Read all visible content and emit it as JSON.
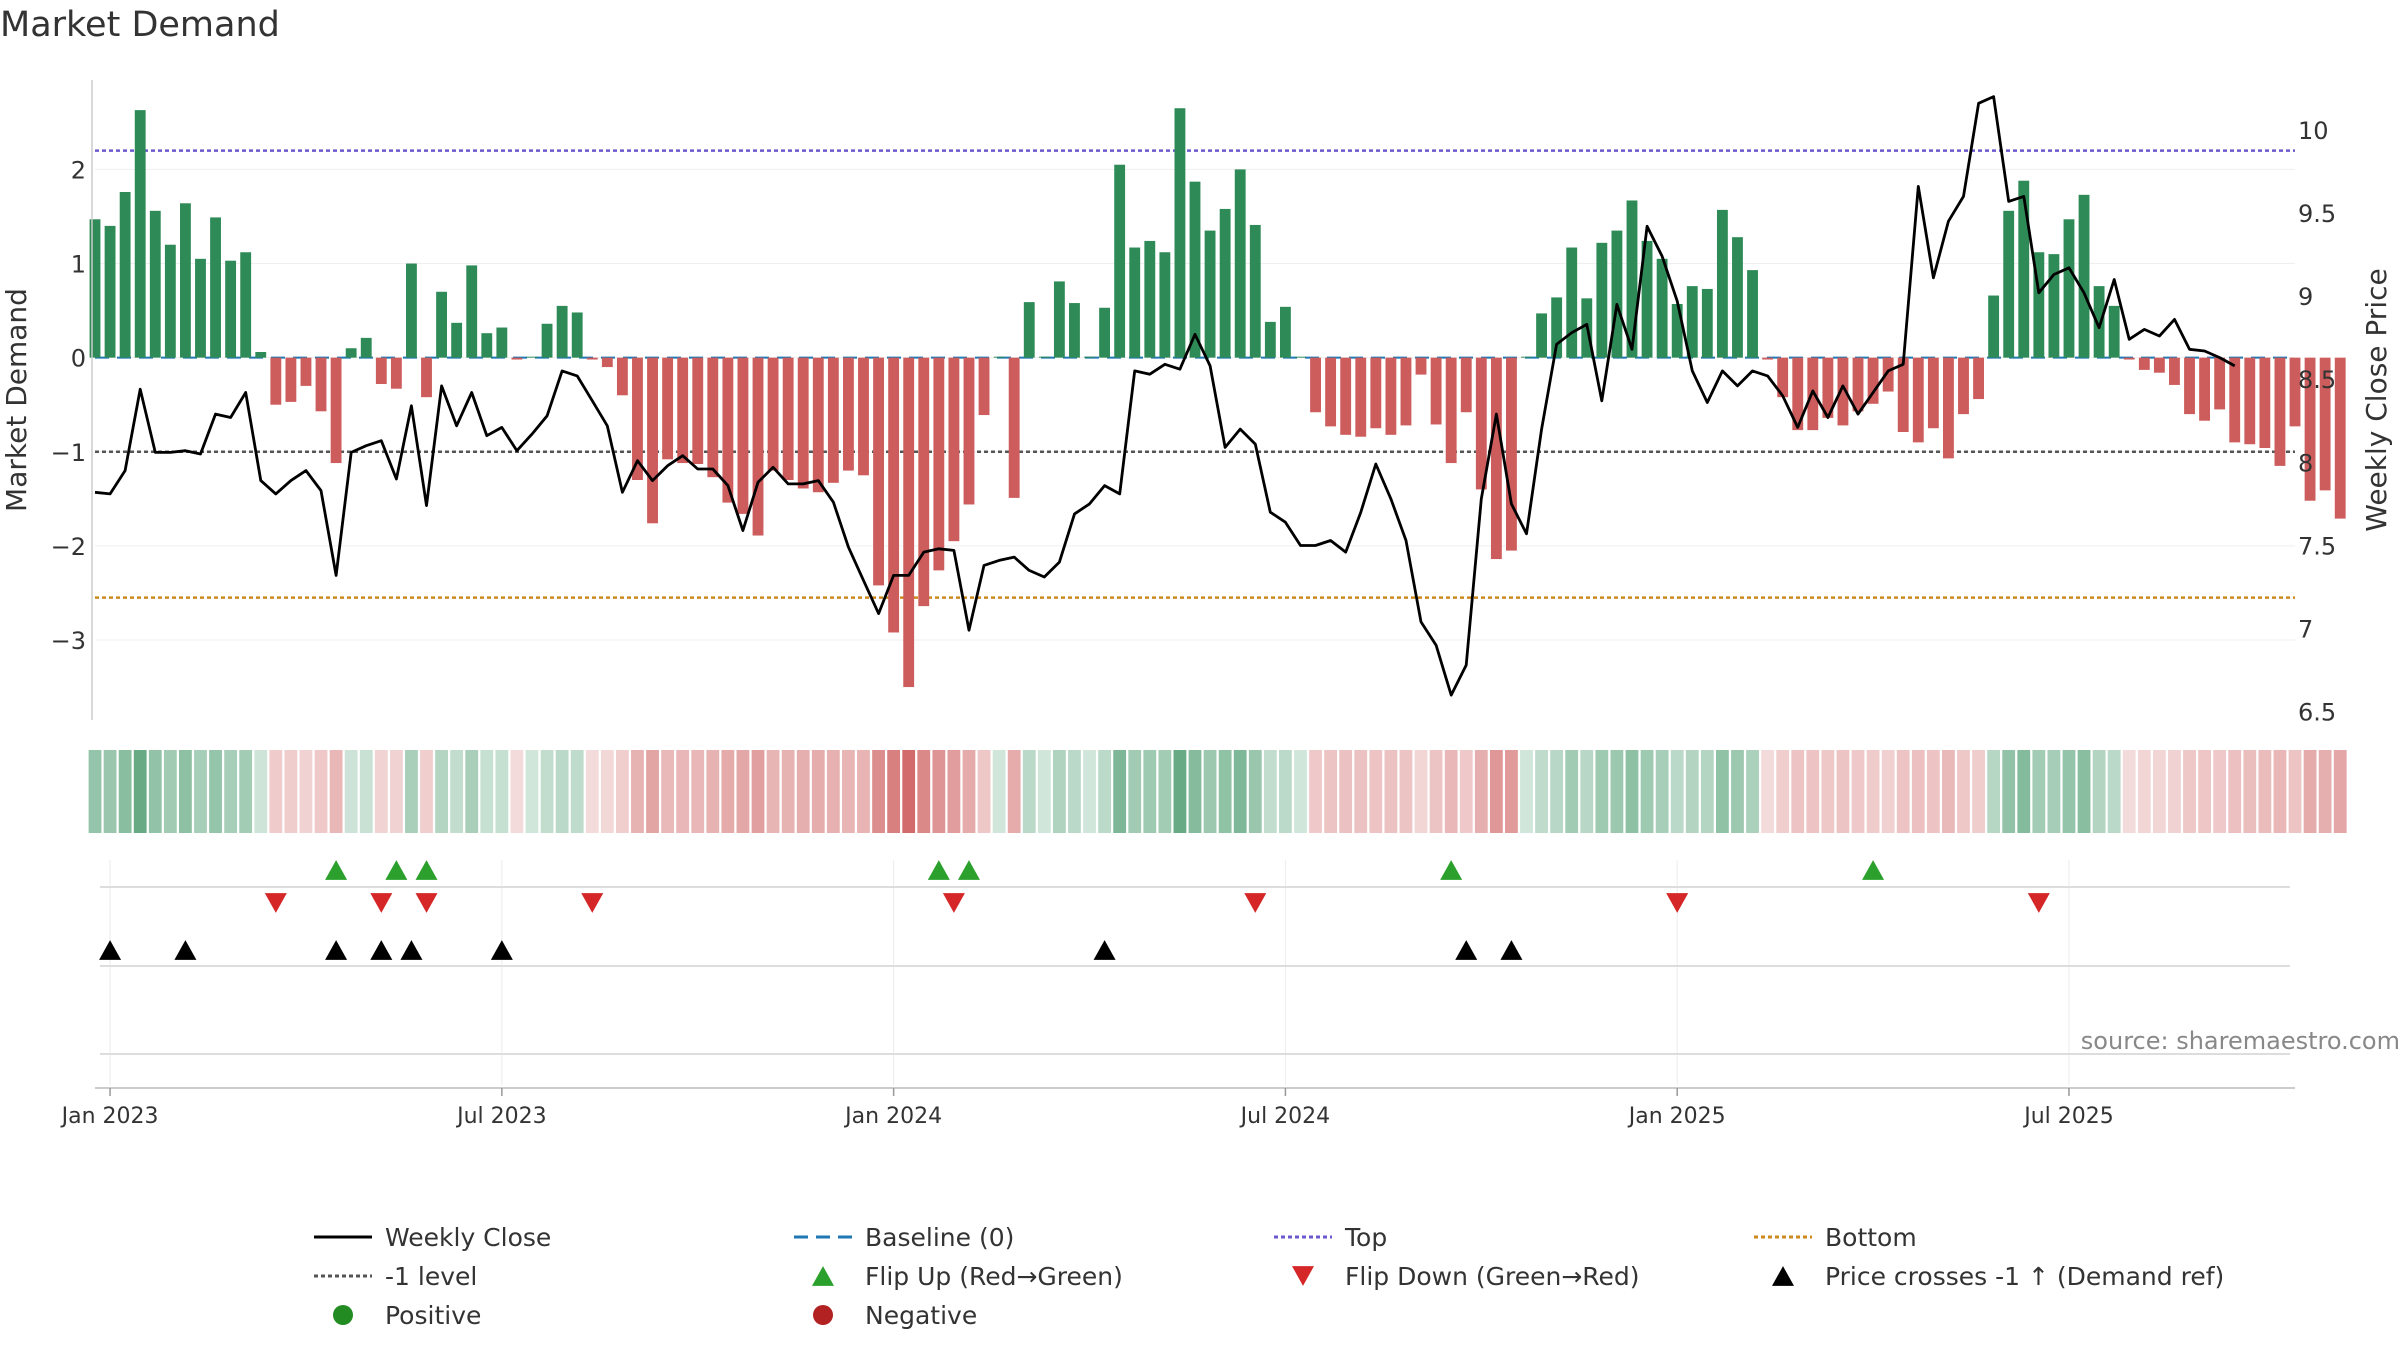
{
  "chart_data": {
    "type": "bar",
    "title": "Market Demand",
    "source": "source: sharemaestro.com",
    "ylabel_left": "Market Demand",
    "ylabel_right": "Weekly Close Price",
    "ylim_left": [
      -3.85,
      2.95
    ],
    "ylim_right": [
      6.45,
      10.3
    ],
    "left_ticks": [
      {
        "v": 2,
        "label": "2"
      },
      {
        "v": 1,
        "label": "1"
      },
      {
        "v": 0,
        "label": "0"
      },
      {
        "v": -1,
        "label": "−1"
      },
      {
        "v": -2,
        "label": "−2"
      },
      {
        "v": -3,
        "label": "−3"
      }
    ],
    "right_ticks": [
      {
        "v": 10,
        "label": "10"
      },
      {
        "v": 9.5,
        "label": "9.5"
      },
      {
        "v": 9,
        "label": "9"
      },
      {
        "v": 8.5,
        "label": "8.5"
      },
      {
        "v": 8,
        "label": "8"
      },
      {
        "v": 7.5,
        "label": "7.5"
      },
      {
        "v": 7,
        "label": "7"
      },
      {
        "v": 6.5,
        "label": "6.5"
      }
    ],
    "x_start": "2022-12-26",
    "x_week_range": [
      0,
      146
    ],
    "x_ticks": [
      {
        "label": "Jan 2023",
        "week": 1
      },
      {
        "label": "Jul 2023",
        "week": 27
      },
      {
        "label": "Jan 2024",
        "week": 53
      },
      {
        "label": "Jul 2024",
        "week": 79
      },
      {
        "label": "Jan 2025",
        "week": 105
      },
      {
        "label": "Jul 2025",
        "week": 131
      }
    ],
    "reference_lines": {
      "top": 2.2,
      "bottom": -2.55,
      "minus_one": -1,
      "baseline": 0
    },
    "demand": [
      1.47,
      1.4,
      1.76,
      2.63,
      1.56,
      1.2,
      1.64,
      1.05,
      1.49,
      1.03,
      1.12,
      0.06,
      -0.5,
      -0.47,
      -0.3,
      -0.57,
      -1.12,
      0.1,
      0.21,
      -0.28,
      -0.33,
      1.0,
      -0.42,
      0.7,
      0.37,
      0.98,
      0.26,
      0.32,
      -0.02,
      0.01,
      0.36,
      0.55,
      0.48,
      -0.02,
      -0.1,
      -0.4,
      -1.3,
      -1.76,
      -1.08,
      -1.12,
      -1.13,
      -1.27,
      -1.54,
      -1.66,
      -1.89,
      -1.2,
      -1.3,
      -1.39,
      -1.43,
      -1.33,
      -1.2,
      -1.25,
      -2.42,
      -2.92,
      -3.5,
      -2.64,
      -2.26,
      -1.95,
      -1.56,
      -0.61,
      0.01,
      -1.49,
      0.59,
      0.01,
      0.81,
      0.58,
      0.01,
      0.53,
      2.05,
      1.17,
      1.24,
      1.12,
      2.65,
      1.87,
      1.35,
      1.58,
      2.0,
      1.41,
      0.38,
      0.54,
      0.01,
      -0.58,
      -0.73,
      -0.82,
      -0.84,
      -0.75,
      -0.82,
      -0.72,
      -0.18,
      -0.71,
      -1.12,
      -0.58,
      -1.4,
      -2.14,
      -2.05,
      0.01,
      0.47,
      0.64,
      1.17,
      0.63,
      1.22,
      1.35,
      1.67,
      1.24,
      1.05,
      0.57,
      0.76,
      0.73,
      1.57,
      1.28,
      0.93,
      -0.02,
      -0.42,
      -0.77,
      -0.77,
      -0.64,
      -0.72,
      -0.57,
      -0.49,
      -0.36,
      -0.79,
      -0.9,
      -0.75,
      -1.07,
      -0.6,
      -0.44,
      0.66,
      1.56,
      1.88,
      1.12,
      1.1,
      1.47,
      1.73,
      0.76,
      0.55,
      -0.02,
      -0.13,
      -0.16,
      -0.29,
      -0.6,
      -0.67,
      -0.55,
      -0.9,
      -0.92,
      -0.96,
      -1.15,
      -0.73,
      -1.52,
      -1.41,
      -1.71
    ],
    "weekly_close": [
      7.82,
      7.81,
      7.95,
      8.44,
      8.06,
      8.06,
      8.07,
      8.05,
      8.29,
      8.27,
      8.42,
      7.89,
      7.81,
      7.89,
      7.95,
      7.83,
      7.32,
      8.06,
      8.1,
      8.13,
      7.9,
      8.34,
      7.74,
      8.46,
      8.22,
      8.42,
      8.16,
      8.21,
      8.07,
      8.17,
      8.28,
      8.55,
      8.52,
      8.37,
      8.22,
      7.82,
      8.01,
      7.89,
      7.98,
      8.04,
      7.96,
      7.96,
      7.86,
      7.59,
      7.88,
      7.97,
      7.87,
      7.87,
      7.89,
      7.76,
      7.49,
      7.29,
      7.09,
      7.32,
      7.32,
      7.46,
      7.48,
      7.47,
      6.99,
      7.38,
      7.41,
      7.43,
      7.35,
      7.31,
      7.4,
      7.69,
      7.75,
      7.86,
      7.81,
      8.55,
      8.53,
      8.59,
      8.56,
      8.77,
      8.58,
      8.09,
      8.2,
      8.11,
      7.7,
      7.64,
      7.5,
      7.5,
      7.53,
      7.46,
      7.7,
      7.99,
      7.78,
      7.53,
      7.04,
      6.9,
      6.6,
      6.78,
      7.78,
      8.29,
      7.75,
      7.57,
      8.2,
      8.71,
      8.78,
      8.83,
      8.37,
      8.95,
      8.68,
      9.42,
      9.24,
      8.97,
      8.55,
      8.36,
      8.55,
      8.46,
      8.55,
      8.52,
      8.4,
      8.21,
      8.43,
      8.27,
      8.46,
      8.29,
      8.42,
      8.55,
      8.59,
      9.66,
      9.11,
      9.45,
      9.6,
      10.16,
      10.2,
      9.57,
      9.6,
      9.02,
      9.13,
      9.17,
      9.02,
      8.81,
      9.1,
      8.74,
      8.8,
      8.76,
      8.86,
      8.68,
      8.67,
      8.63,
      8.58
    ],
    "flip_up_weeks": [
      16,
      20,
      22,
      56,
      58,
      90,
      118
    ],
    "flip_down_weeks": [
      12,
      19,
      22,
      33,
      57,
      77,
      105,
      129
    ],
    "cross_weeks": [
      1,
      6,
      16,
      19,
      21,
      27,
      67,
      91,
      94
    ],
    "colors": {
      "positive_bar": "#2e8b57",
      "negative_bar": "#cd5c5c",
      "close_line": "#000000",
      "baseline": "#1f77b4",
      "top": "#6a5acd",
      "bottom": "#cc8a1e",
      "minus_one": "#555555",
      "flip_up": "#2ca02c",
      "flip_down": "#d62728",
      "cross": "#000000"
    },
    "legend": {
      "placement": "bottom",
      "items": [
        {
          "label": "Weekly Close",
          "kind": "line",
          "color": "#000000",
          "dash": ""
        },
        {
          "label": "Baseline (0)",
          "kind": "line",
          "color": "#1f77b4",
          "dash": "14 8"
        },
        {
          "label": "Top",
          "kind": "line",
          "color": "#6a5acd",
          "dash": "4 3"
        },
        {
          "label": "Bottom",
          "kind": "line",
          "color": "#cc8a1e",
          "dash": "4 3"
        },
        {
          "label": "-1 level",
          "kind": "line",
          "color": "#555555",
          "dash": "4 3"
        },
        {
          "label": "Flip Up (Red→Green)",
          "kind": "tri-up",
          "color": "#2ca02c"
        },
        {
          "label": "Flip Down (Green→Red)",
          "kind": "tri-down",
          "color": "#d62728"
        },
        {
          "label": "Price crosses -1 ↑ (Demand ref)",
          "kind": "tri-up",
          "color": "#000000"
        },
        {
          "label": "Positive",
          "kind": "dot",
          "color": "#228b22"
        },
        {
          "label": "Negative",
          "kind": "dot",
          "color": "#b22222"
        }
      ]
    }
  }
}
